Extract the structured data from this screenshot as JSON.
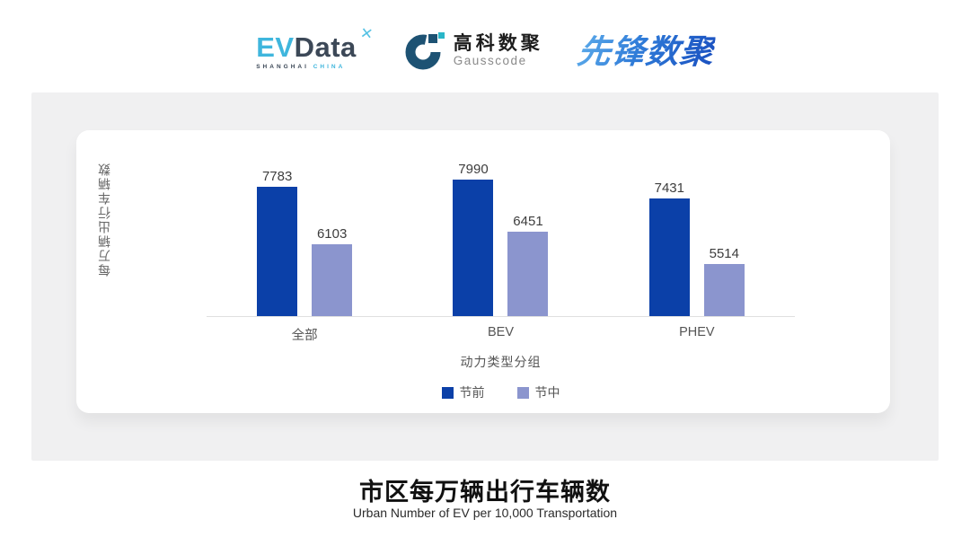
{
  "header": {
    "evdata_logo": {
      "ev": "EV",
      "data": "Data",
      "x_mark": "✕",
      "sub_left": "SHANGHAI",
      "sub_right": "CHINA"
    },
    "gausscode_logo": {
      "name_cn": "高科数聚",
      "name_en": "Gausscode"
    },
    "pioneer_logo": {
      "text": "先锋数聚"
    }
  },
  "chart_data": {
    "type": "bar",
    "categories": [
      "全部",
      "BEV",
      "PHEV"
    ],
    "series": [
      {
        "name": "节前",
        "color": "#0b40a8",
        "values": [
          7783,
          7990,
          7431
        ]
      },
      {
        "name": "节中",
        "color": "#8b95ce",
        "values": [
          6103,
          6451,
          5514
        ]
      }
    ],
    "xlabel": "动力类型分组",
    "ylabel": "每万辆出行车辆数",
    "ylim": [
      4000,
      8400
    ],
    "grid": false,
    "legend_position": "bottom",
    "value_labels": true
  },
  "footer": {
    "title": "市区每万辆出行车辆数",
    "subtitle": "Urban Number of EV per 10,000 Transportation"
  },
  "colors": {
    "panel_bg": "#f0f0f1",
    "axis_line": "#e0e0e0",
    "series_pre_festival": "#0b40a8",
    "series_mid_festival": "#8b95ce"
  }
}
